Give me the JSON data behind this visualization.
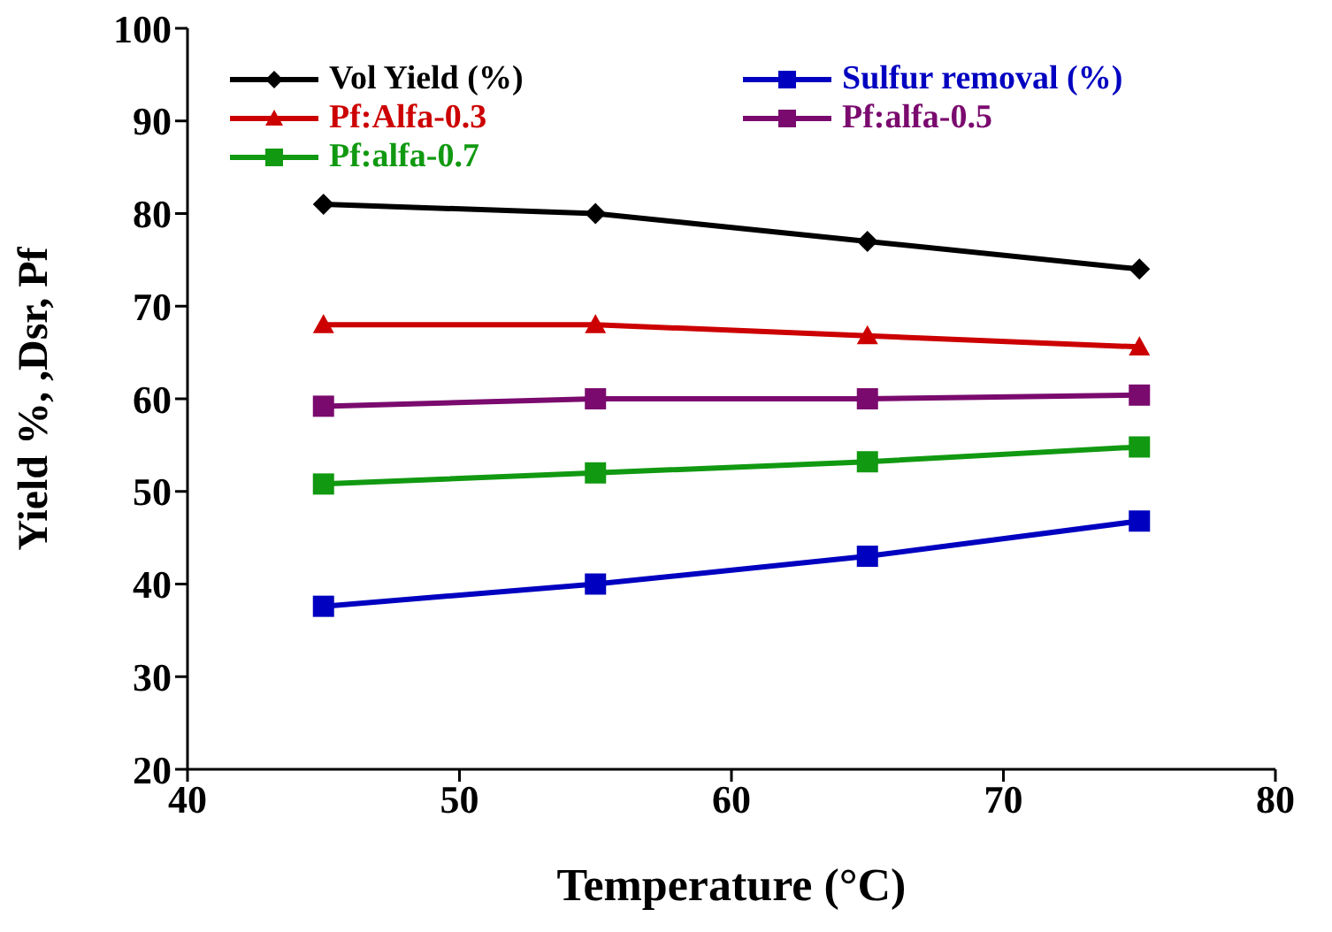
{
  "chart_data": {
    "type": "line",
    "xlabel": "Temperature (°C)",
    "ylabel": "Yield %,      ,Dsr,      Pf",
    "x": [
      45,
      55,
      65,
      75
    ],
    "xlim": [
      40,
      80
    ],
    "xticks": [
      40,
      50,
      60,
      70,
      80
    ],
    "ylim": [
      20,
      100
    ],
    "yticks": [
      20,
      30,
      40,
      50,
      60,
      70,
      80,
      90,
      100
    ],
    "grid": false,
    "legend": "top",
    "series": [
      {
        "name": "Vol Yield (%)",
        "color": "#000000",
        "marker": "diamond",
        "values": [
          81,
          80,
          77,
          74
        ]
      },
      {
        "name": "Sulfur removal (%)",
        "color": "#0000c0",
        "marker": "square",
        "values": [
          37.6,
          40,
          43,
          46.8
        ]
      },
      {
        "name": "Pf:Alfa-0.3",
        "color": "#cc0000",
        "marker": "triangle",
        "values": [
          68,
          68,
          66.8,
          65.6
        ]
      },
      {
        "name": "Pf:alfa-0.5",
        "color": "#7a0a6e",
        "marker": "square",
        "values": [
          59.2,
          60,
          60,
          60.4
        ]
      },
      {
        "name": "Pf:alfa-0.7",
        "color": "#119911",
        "marker": "square",
        "values": [
          50.8,
          52,
          53.2,
          54.8
        ]
      }
    ]
  }
}
